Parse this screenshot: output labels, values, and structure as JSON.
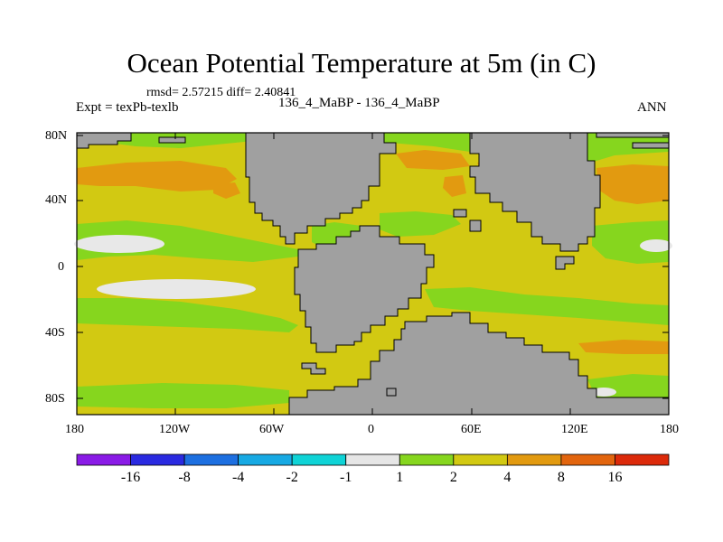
{
  "title": "Ocean Potential Temperature at 5m (in C)",
  "stats": "rmsd= 2.57215 diff= 2.40841",
  "left_label": "Expt = texPb-texlb",
  "center_label": "136_4_MaBP - 136_4_MaBP",
  "right_label": "ANN",
  "lat_labels": [
    "80N",
    "40N",
    "0",
    "40S",
    "80S"
  ],
  "lon_labels": [
    "180",
    "120W",
    "60W",
    "0",
    "60E",
    "120E",
    "180"
  ],
  "colorbar": {
    "colors": [
      "#8a1be6",
      "#2a2ae0",
      "#1d6fe0",
      "#17a9e3",
      "#0fd3d6",
      "#e6e6e6",
      "#86d61e",
      "#d2c912",
      "#e29a10",
      "#e2650e",
      "#dc2a0a"
    ],
    "labels": [
      "-16",
      "-8",
      "-4",
      "-2",
      "-1",
      "1",
      "2",
      "4",
      "8",
      "16"
    ]
  },
  "palette": {
    "land": "#a0a0a0",
    "green": "#86d61e",
    "yellow": "#d2c912",
    "orange": "#e29a10",
    "white": "#e8e8e8"
  }
}
